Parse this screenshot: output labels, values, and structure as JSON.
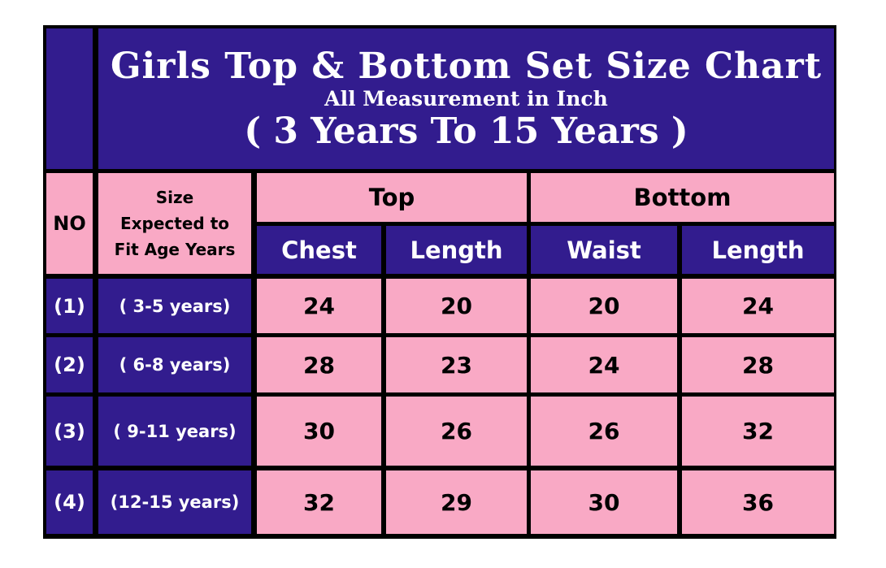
{
  "title": "Girls Top & Bottom Set Size Chart",
  "subtitle": "All Measurement in Inch",
  "range": "( 3 Years To 15 Years )",
  "headers": {
    "no": "NO",
    "size": [
      "Size",
      "Expected to",
      "Fit Age Years"
    ],
    "top": "Top",
    "bottom": "Bottom",
    "chest": "Chest",
    "top_length": "Length",
    "waist": "Waist",
    "bottom_length": "Length"
  },
  "rows": [
    {
      "no": "(1)",
      "age": "( 3-5 years)",
      "chest": "24",
      "top_length": "20",
      "waist": "20",
      "bottom_length": "24"
    },
    {
      "no": "(2)",
      "age": "( 6-8 years)",
      "chest": "28",
      "top_length": "23",
      "waist": "24",
      "bottom_length": "28"
    },
    {
      "no": "(3)",
      "age": "( 9-11 years)",
      "chest": "30",
      "top_length": "26",
      "waist": "26",
      "bottom_length": "32"
    },
    {
      "no": "(4)",
      "age": "(12-15 years)",
      "chest": "32",
      "top_length": "29",
      "waist": "30",
      "bottom_length": "36"
    }
  ],
  "colors": {
    "purple": "#321c8e",
    "pink": "#f9a9c5",
    "border": "#000000"
  }
}
